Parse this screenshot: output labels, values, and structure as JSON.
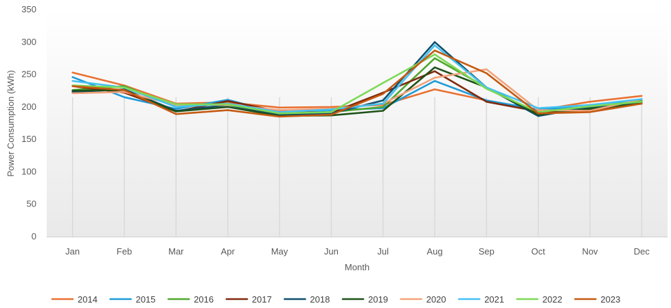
{
  "chart_data": {
    "type": "line",
    "title": "",
    "xlabel": "Month",
    "ylabel": "Power Consumption (kWh)",
    "ylim": [
      0,
      350
    ],
    "yticks": [
      0,
      50,
      100,
      150,
      200,
      250,
      300,
      350
    ],
    "grid": false,
    "legend": "bottom",
    "categories": [
      "Jan",
      "Feb",
      "Mar",
      "Apr",
      "May",
      "Jun",
      "Jul",
      "Aug",
      "Sep",
      "Oct",
      "Nov",
      "Dec"
    ],
    "series": [
      {
        "name": "2014",
        "color": "#E97132",
        "values": [
          253,
          233,
          205,
          207,
          199,
          200,
          203,
          227,
          210,
          195,
          208,
          217
        ]
      },
      {
        "name": "2015",
        "color": "#1F9BD7",
        "values": [
          246,
          215,
          197,
          211,
          190,
          195,
          198,
          240,
          210,
          196,
          200,
          210
        ]
      },
      {
        "name": "2016",
        "color": "#4EA72E",
        "values": [
          226,
          232,
          200,
          205,
          188,
          192,
          200,
          275,
          230,
          190,
          198,
          210
        ]
      },
      {
        "name": "2017",
        "color": "#7F2A0C",
        "values": [
          232,
          222,
          193,
          209,
          193,
          191,
          222,
          255,
          208,
          193,
          194,
          208
        ]
      },
      {
        "name": "2018",
        "color": "#0E4F6E",
        "values": [
          223,
          227,
          194,
          203,
          188,
          190,
          210,
          300,
          230,
          186,
          200,
          207
        ]
      },
      {
        "name": "2019",
        "color": "#1E5218",
        "values": [
          225,
          226,
          193,
          200,
          186,
          187,
          194,
          261,
          230,
          188,
          197,
          205
        ]
      },
      {
        "name": "2020",
        "color": "#F2A37C",
        "values": [
          221,
          223,
          203,
          203,
          195,
          197,
          205,
          245,
          258,
          195,
          194,
          212
        ]
      },
      {
        "name": "2021",
        "color": "#44C1F1",
        "values": [
          240,
          230,
          200,
          205,
          192,
          196,
          205,
          295,
          230,
          198,
          203,
          212
        ]
      },
      {
        "name": "2022",
        "color": "#7ED957",
        "values": [
          233,
          230,
          204,
          204,
          190,
          192,
          237,
          281,
          228,
          192,
          201,
          208
        ]
      },
      {
        "name": "2023",
        "color": "#C55A11",
        "values": [
          232,
          226,
          189,
          195,
          185,
          188,
          220,
          287,
          252,
          190,
          192,
          205
        ]
      }
    ]
  }
}
